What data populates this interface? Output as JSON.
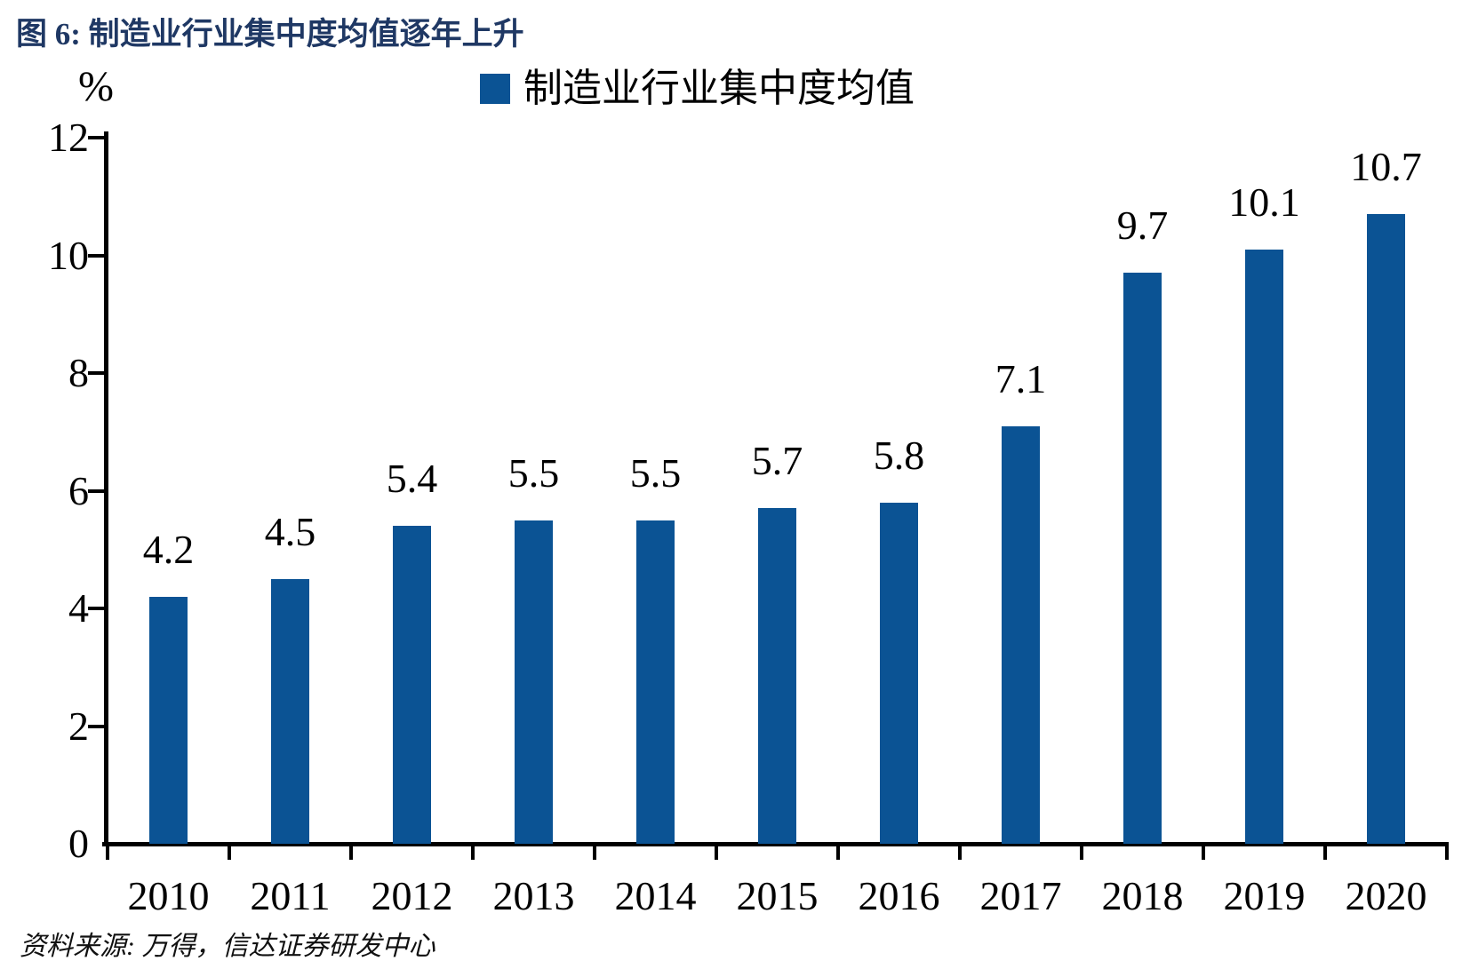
{
  "figure": {
    "title": "图 6: 制造业行业集中度均值逐年上升",
    "unit_label": "%",
    "source": "资料来源: 万得，信达证券研发中心"
  },
  "legend": {
    "label": "制造业行业集中度均值",
    "swatch_color": "#0B5394"
  },
  "colors": {
    "bar": "#0B5394",
    "title": "#1F3864",
    "axis": "#000000"
  },
  "chart_data": {
    "type": "bar",
    "title": "制造业行业集中度均值逐年上升",
    "categories": [
      "2010",
      "2011",
      "2012",
      "2013",
      "2014",
      "2015",
      "2016",
      "2017",
      "2018",
      "2019",
      "2020"
    ],
    "series": [
      {
        "name": "制造业行业集中度均值",
        "values": [
          4.2,
          4.5,
          5.4,
          5.5,
          5.5,
          5.7,
          5.8,
          7.1,
          9.7,
          10.1,
          10.7
        ]
      }
    ],
    "value_labels": [
      "4.2",
      "4.5",
      "5.4",
      "5.5",
      "5.5",
      "5.7",
      "5.8",
      "7.1",
      "9.7",
      "10.1",
      "10.7"
    ],
    "xlabel": "",
    "ylabel": "%",
    "ylim": [
      0,
      12
    ],
    "yticks": [
      0,
      2,
      4,
      6,
      8,
      10,
      12
    ],
    "grid": false,
    "legend_position": "top-center",
    "bar_color": "#0B5394"
  }
}
